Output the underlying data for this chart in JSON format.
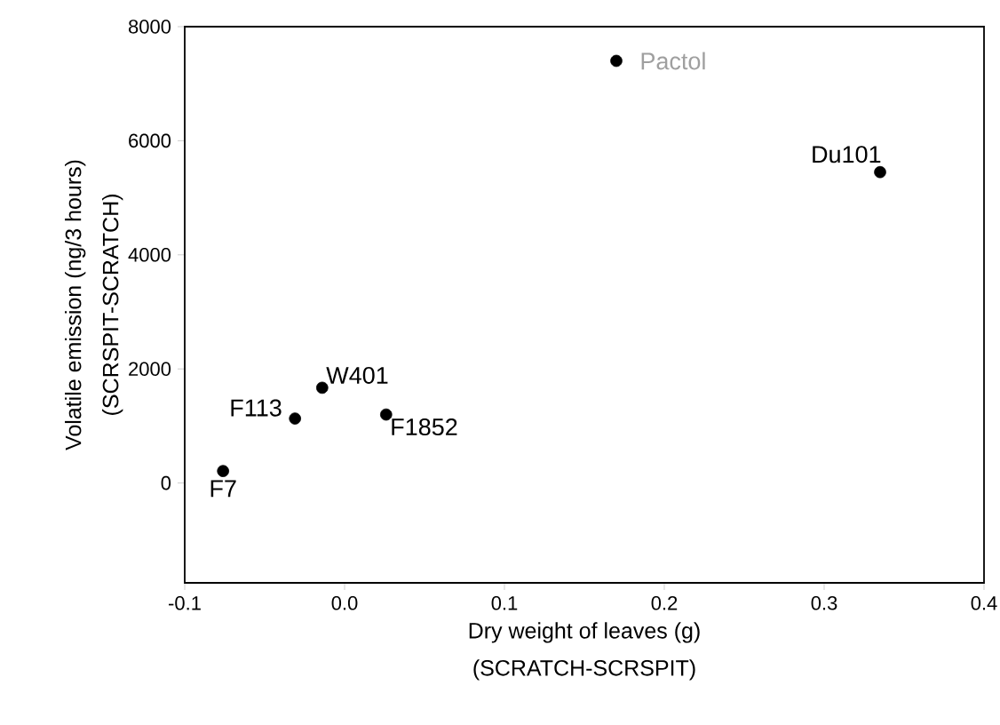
{
  "chart_data": {
    "type": "scatter",
    "xlabel": "Dry weight of leaves (g)\n(SCRATCH-SCRSPIT)",
    "ylabel": "Volatile emission (ng/3 hours)\n(SCRSPIT-SCRATCH)",
    "x": [
      0.17,
      0.335,
      -0.014,
      -0.031,
      0.026,
      -0.076
    ],
    "values": [
      7400,
      5450,
      1670,
      1130,
      1200,
      210
    ],
    "color": "#000000",
    "marker": "circle",
    "xlim": [
      -0.1,
      0.4
    ],
    "xticks": [
      {
        "value": -0.1,
        "label": "-0.1"
      },
      {
        "value": 0,
        "label": "0.0"
      },
      {
        "value": 0.1,
        "label": "0.1"
      },
      {
        "value": 0.2,
        "label": "0.2"
      },
      {
        "value": 0.3,
        "label": "0.3"
      },
      {
        "value": 0.4,
        "label": "0.4"
      }
    ],
    "ylim": [
      -1750,
      8000
    ],
    "yticks": [
      0,
      2000,
      4000,
      6000,
      8000
    ],
    "annotations": [
      {
        "text": "Pactol",
        "x": 0.17,
        "y": 7400
      },
      {
        "text": "Du101",
        "x": 0.335,
        "y": 5450
      },
      {
        "text": "W401",
        "x": -0.014,
        "y": 1670
      },
      {
        "text": "F113",
        "x": -0.031,
        "y": 1130
      },
      {
        "text": "F1852",
        "x": 0.026,
        "y": 1200
      },
      {
        "text": "F7",
        "x": -0.076,
        "y": 210
      }
    ]
  }
}
